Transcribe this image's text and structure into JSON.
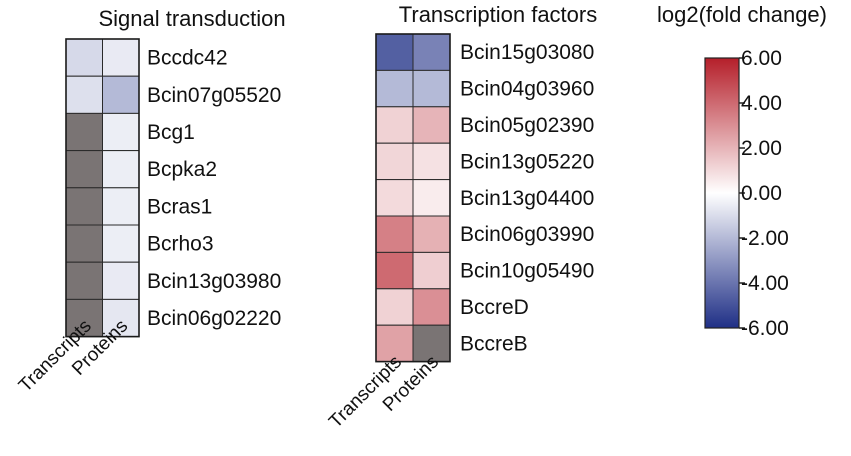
{
  "chart_data": [
    {
      "type": "heatmap",
      "title": "Signal transduction",
      "rows": [
        "Bccdc42",
        "Bcin07g05520",
        "Bcg1",
        "Bcpka2",
        "Bcras1",
        "Bcrho3",
        "Bcin13g03980",
        "Bcin06g02220"
      ],
      "columns": [
        "Transcripts",
        "Proteins"
      ],
      "values": [
        [
          -1.1,
          -0.6
        ],
        [
          -0.9,
          -2.0
        ],
        [
          null,
          -0.5
        ],
        [
          null,
          -0.5
        ],
        [
          null,
          -0.5
        ],
        [
          null,
          -0.5
        ],
        [
          null,
          -0.6
        ],
        [
          null,
          -0.7
        ]
      ],
      "missing_color": "#7a7474"
    },
    {
      "type": "heatmap",
      "title": "Transcription factors",
      "rows": [
        "Bcin15g03080",
        "Bcin04g03960",
        "Bcin05g02390",
        "Bcin13g05220",
        "Bcin13g04400",
        "Bcin06g03990",
        "Bcin10g05490",
        "BccreD",
        "BccreB"
      ],
      "columns": [
        "Transcripts",
        "Proteins"
      ],
      "values": [
        [
          -4.6,
          -3.6
        ],
        [
          -2.0,
          -2.0
        ],
        [
          1.2,
          2.0
        ],
        [
          1.1,
          0.8
        ],
        [
          1.0,
          0.5
        ],
        [
          3.4,
          2.1
        ],
        [
          4.0,
          1.3
        ],
        [
          1.2,
          3.0
        ],
        [
          2.5,
          null
        ]
      ],
      "missing_color": "#7a7474"
    }
  ],
  "legend": {
    "title": "log2(fold change)",
    "min": -6,
    "max": 6,
    "ticks": [
      "6.00",
      "4.00",
      "2.00",
      "0.00",
      "-2.00",
      "-4.00",
      "-6.00"
    ],
    "colors": {
      "low": "#1f2f86",
      "mid": "#ffffff",
      "high": "#b51f2a"
    }
  }
}
